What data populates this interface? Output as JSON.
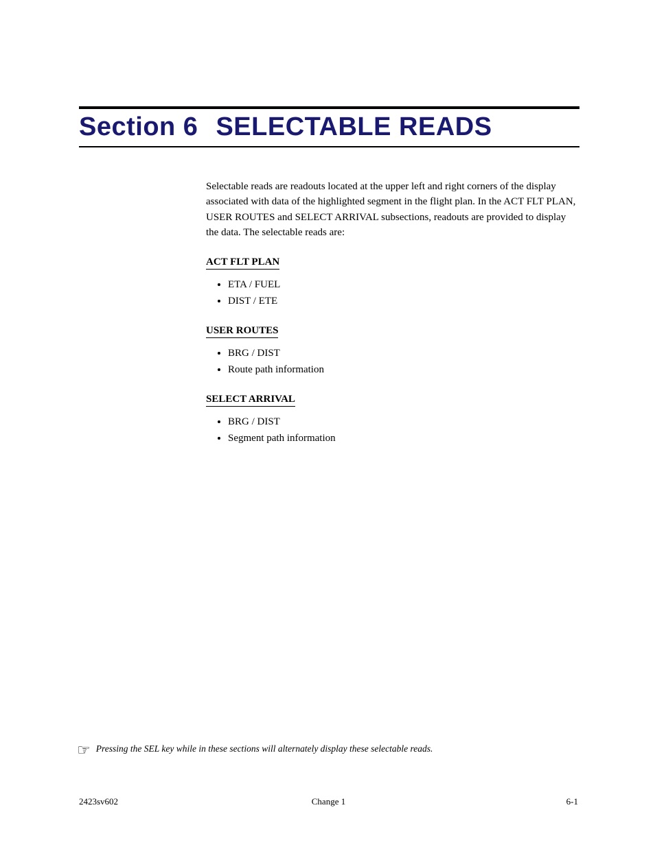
{
  "colors": {
    "heading": "#191970",
    "rule": "#000000",
    "text": "#000000",
    "background": "#ffffff"
  },
  "typography": {
    "heading_font": "Impact",
    "heading_size_pt": 28,
    "body_font": "Times New Roman",
    "body_size_pt": 11,
    "note_size_pt": 10
  },
  "heading": {
    "section_label": "Section 6",
    "title": "SELECTABLE READS"
  },
  "intro": "Selectable reads are readouts located at the upper left and right corners of the display associated with data of the highlighted segment in the flight plan. In the ACT FLT PLAN, USER ROUTES and SELECT ARRIVAL subsections, readouts are provided to display the data. The selectable reads are:",
  "groups": [
    {
      "title": "ACT FLT PLAN",
      "items": [
        "ETA / FUEL",
        "DIST / ETE"
      ]
    },
    {
      "title": "USER ROUTES",
      "items": [
        "BRG / DIST",
        "Route path information"
      ]
    },
    {
      "title": "SELECT ARRIVAL",
      "items": [
        "BRG / DIST",
        "Segment path information"
      ]
    }
  ],
  "note": {
    "icon": "☞",
    "text": "Pressing the SEL key while in these sections will alternately display these selectable reads."
  },
  "footer": {
    "left": "2423sv602",
    "center": "Change 1",
    "right": "6-1"
  }
}
